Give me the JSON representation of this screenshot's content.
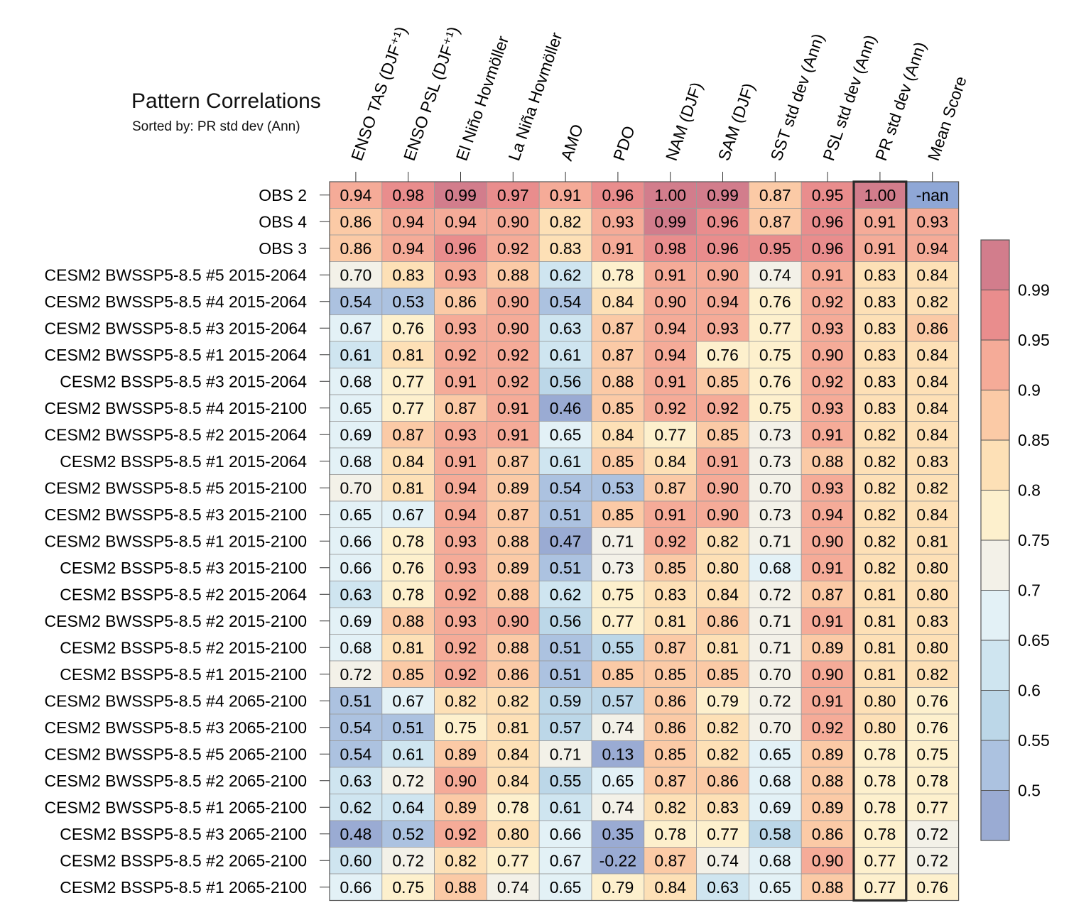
{
  "chart_data": {
    "type": "heatmap",
    "title": "Pattern Correlations",
    "subtitle": "Sorted by: PR std dev (Ann)",
    "highlighted_column": "PR std dev (Ann)",
    "columns": [
      "ENSO TAS (DJF⁺¹)",
      "ENSO PSL (DJF⁺¹)",
      "El Niño Hovmöller",
      "La Niña Hovmöller",
      "AMO",
      "PDO",
      "NAM (DJF)",
      "SAM (DJF)",
      "SST std dev (Ann)",
      "PSL std dev (Ann)",
      "PR std dev (Ann)",
      "Mean Score"
    ],
    "rows": [
      {
        "label": "OBS 2",
        "values": [
          "0.94",
          "0.98",
          "0.99",
          "0.97",
          "0.91",
          "0.96",
          "1.00",
          "0.99",
          "0.87",
          "0.95",
          "1.00",
          "-nan"
        ]
      },
      {
        "label": "OBS 4",
        "values": [
          "0.86",
          "0.94",
          "0.94",
          "0.90",
          "0.82",
          "0.93",
          "0.99",
          "0.96",
          "0.87",
          "0.96",
          "0.91",
          "0.93"
        ]
      },
      {
        "label": "OBS 3",
        "values": [
          "0.86",
          "0.94",
          "0.96",
          "0.92",
          "0.83",
          "0.91",
          "0.98",
          "0.96",
          "0.95",
          "0.96",
          "0.91",
          "0.94"
        ]
      },
      {
        "label": "CESM2 BWSSP5-8.5 #5 2015-2064",
        "values": [
          "0.70",
          "0.83",
          "0.93",
          "0.88",
          "0.62",
          "0.78",
          "0.91",
          "0.90",
          "0.74",
          "0.91",
          "0.83",
          "0.84"
        ]
      },
      {
        "label": "CESM2 BWSSP5-8.5 #4 2015-2064",
        "values": [
          "0.54",
          "0.53",
          "0.86",
          "0.90",
          "0.54",
          "0.84",
          "0.90",
          "0.94",
          "0.76",
          "0.92",
          "0.83",
          "0.82"
        ]
      },
      {
        "label": "CESM2 BWSSP5-8.5 #3 2015-2064",
        "values": [
          "0.67",
          "0.76",
          "0.93",
          "0.90",
          "0.63",
          "0.87",
          "0.94",
          "0.93",
          "0.77",
          "0.93",
          "0.83",
          "0.86"
        ]
      },
      {
        "label": "CESM2 BWSSP5-8.5 #1 2015-2064",
        "values": [
          "0.61",
          "0.81",
          "0.92",
          "0.92",
          "0.61",
          "0.87",
          "0.94",
          "0.76",
          "0.75",
          "0.90",
          "0.83",
          "0.84"
        ]
      },
      {
        "label": "CESM2 BSSP5-8.5 #3 2015-2064",
        "values": [
          "0.68",
          "0.77",
          "0.91",
          "0.92",
          "0.56",
          "0.88",
          "0.91",
          "0.85",
          "0.76",
          "0.92",
          "0.83",
          "0.84"
        ]
      },
      {
        "label": "CESM2 BWSSP5-8.5 #4 2015-2100",
        "values": [
          "0.65",
          "0.77",
          "0.87",
          "0.91",
          "0.46",
          "0.85",
          "0.92",
          "0.92",
          "0.75",
          "0.93",
          "0.83",
          "0.84"
        ]
      },
      {
        "label": "CESM2 BWSSP5-8.5 #2 2015-2064",
        "values": [
          "0.69",
          "0.87",
          "0.93",
          "0.91",
          "0.65",
          "0.84",
          "0.77",
          "0.85",
          "0.73",
          "0.91",
          "0.82",
          "0.84"
        ]
      },
      {
        "label": "CESM2 BSSP5-8.5 #1 2015-2064",
        "values": [
          "0.68",
          "0.84",
          "0.91",
          "0.87",
          "0.61",
          "0.85",
          "0.84",
          "0.91",
          "0.73",
          "0.88",
          "0.82",
          "0.83"
        ]
      },
      {
        "label": "CESM2 BWSSP5-8.5 #5 2015-2100",
        "values": [
          "0.70",
          "0.81",
          "0.94",
          "0.89",
          "0.54",
          "0.53",
          "0.87",
          "0.90",
          "0.70",
          "0.93",
          "0.82",
          "0.82"
        ]
      },
      {
        "label": "CESM2 BWSSP5-8.5 #3 2015-2100",
        "values": [
          "0.65",
          "0.67",
          "0.94",
          "0.87",
          "0.51",
          "0.85",
          "0.91",
          "0.90",
          "0.73",
          "0.94",
          "0.82",
          "0.84"
        ]
      },
      {
        "label": "CESM2 BWSSP5-8.5 #1 2015-2100",
        "values": [
          "0.66",
          "0.78",
          "0.93",
          "0.88",
          "0.47",
          "0.71",
          "0.92",
          "0.82",
          "0.71",
          "0.90",
          "0.82",
          "0.81"
        ]
      },
      {
        "label": "CESM2 BSSP5-8.5 #3 2015-2100",
        "values": [
          "0.66",
          "0.76",
          "0.93",
          "0.89",
          "0.51",
          "0.73",
          "0.85",
          "0.80",
          "0.68",
          "0.91",
          "0.82",
          "0.80"
        ]
      },
      {
        "label": "CESM2 BSSP5-8.5 #2 2015-2064",
        "values": [
          "0.63",
          "0.78",
          "0.92",
          "0.88",
          "0.62",
          "0.75",
          "0.83",
          "0.84",
          "0.72",
          "0.87",
          "0.81",
          "0.80"
        ]
      },
      {
        "label": "CESM2 BWSSP5-8.5 #2 2015-2100",
        "values": [
          "0.69",
          "0.88",
          "0.93",
          "0.90",
          "0.56",
          "0.77",
          "0.81",
          "0.86",
          "0.71",
          "0.91",
          "0.81",
          "0.83"
        ]
      },
      {
        "label": "CESM2 BSSP5-8.5 #2 2015-2100",
        "values": [
          "0.68",
          "0.81",
          "0.92",
          "0.88",
          "0.51",
          "0.55",
          "0.87",
          "0.81",
          "0.71",
          "0.89",
          "0.81",
          "0.80"
        ]
      },
      {
        "label": "CESM2 BSSP5-8.5 #1 2015-2100",
        "values": [
          "0.72",
          "0.85",
          "0.92",
          "0.86",
          "0.51",
          "0.85",
          "0.85",
          "0.85",
          "0.70",
          "0.90",
          "0.81",
          "0.82"
        ]
      },
      {
        "label": "CESM2 BWSSP5-8.5 #4 2065-2100",
        "values": [
          "0.51",
          "0.67",
          "0.82",
          "0.82",
          "0.59",
          "0.57",
          "0.86",
          "0.79",
          "0.72",
          "0.91",
          "0.80",
          "0.76"
        ]
      },
      {
        "label": "CESM2 BWSSP5-8.5 #3 2065-2100",
        "values": [
          "0.54",
          "0.51",
          "0.75",
          "0.81",
          "0.57",
          "0.74",
          "0.86",
          "0.82",
          "0.70",
          "0.92",
          "0.80",
          "0.76"
        ]
      },
      {
        "label": "CESM2 BWSSP5-8.5 #5 2065-2100",
        "values": [
          "0.54",
          "0.61",
          "0.89",
          "0.84",
          "0.71",
          "0.13",
          "0.85",
          "0.82",
          "0.65",
          "0.89",
          "0.78",
          "0.75"
        ]
      },
      {
        "label": "CESM2 BWSSP5-8.5 #2 2065-2100",
        "values": [
          "0.63",
          "0.72",
          "0.90",
          "0.84",
          "0.55",
          "0.65",
          "0.87",
          "0.86",
          "0.68",
          "0.88",
          "0.78",
          "0.78"
        ]
      },
      {
        "label": "CESM2 BWSSP5-8.5 #1 2065-2100",
        "values": [
          "0.62",
          "0.64",
          "0.89",
          "0.78",
          "0.61",
          "0.74",
          "0.82",
          "0.83",
          "0.69",
          "0.89",
          "0.78",
          "0.77"
        ]
      },
      {
        "label": "CESM2 BSSP5-8.5 #3 2065-2100",
        "values": [
          "0.48",
          "0.52",
          "0.92",
          "0.80",
          "0.66",
          "0.35",
          "0.78",
          "0.77",
          "0.58",
          "0.86",
          "0.78",
          "0.72"
        ]
      },
      {
        "label": "CESM2 BSSP5-8.5 #2 2065-2100",
        "values": [
          "0.60",
          "0.72",
          "0.82",
          "0.77",
          "0.67",
          "-0.22",
          "0.87",
          "0.74",
          "0.68",
          "0.90",
          "0.77",
          "0.72"
        ]
      },
      {
        "label": "CESM2 BSSP5-8.5 #1 2065-2100",
        "values": [
          "0.66",
          "0.75",
          "0.88",
          "0.74",
          "0.65",
          "0.79",
          "0.84",
          "0.63",
          "0.65",
          "0.88",
          "0.77",
          "0.76"
        ]
      }
    ],
    "colorbar": {
      "tick_labels": [
        "0.99",
        "0.95",
        "0.9",
        "0.85",
        "0.8",
        "0.75",
        "0.7",
        "0.65",
        "0.6",
        "0.55",
        "0.5"
      ],
      "levels": [
        0.5,
        0.55,
        0.6,
        0.65,
        0.7,
        0.75,
        0.8,
        0.85,
        0.9,
        0.95,
        0.99
      ],
      "colors_low_to_high": [
        "#9aabd3",
        "#acc2e0",
        "#bcd7e8",
        "#cfe5f0",
        "#e3f1f6",
        "#f3f1e8",
        "#fdf0cd",
        "#fde0b6",
        "#fbcaa6",
        "#f5ab98",
        "#e98d8d",
        "#d27d8c"
      ],
      "nan_color": "#8fa7d6"
    }
  }
}
